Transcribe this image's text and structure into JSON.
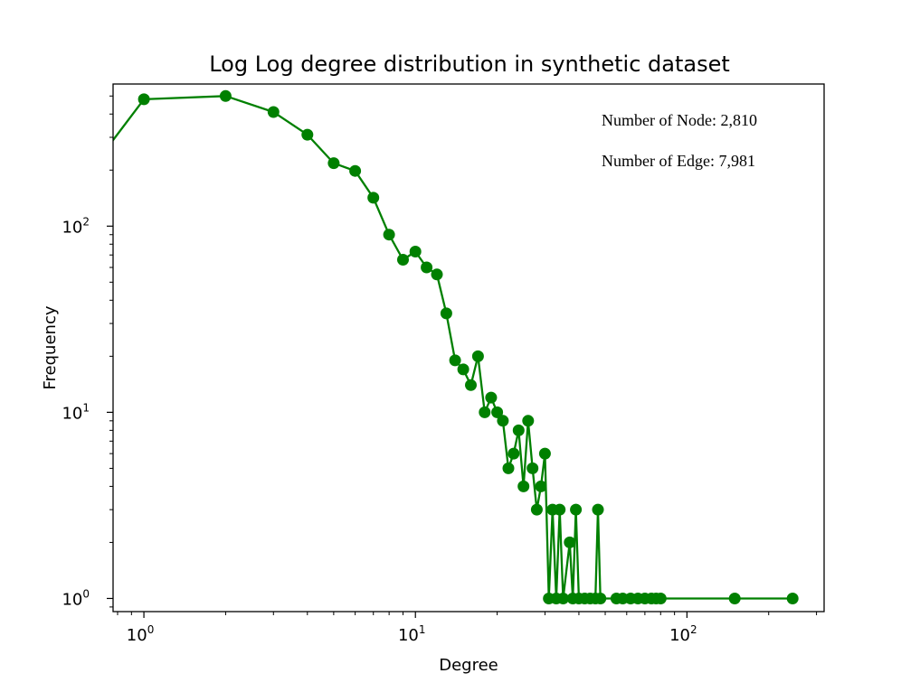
{
  "chart_data": {
    "type": "line",
    "title": "Log Log degree distribution in synthetic dataset",
    "xlabel": "Degree",
    "ylabel": "Frequency",
    "xscale": "log",
    "yscale": "log",
    "xlim": [
      0.77,
      320
    ],
    "ylim": [
      0.85,
      580
    ],
    "grid": false,
    "x_ticks": [
      {
        "base": "10",
        "exp": "0",
        "value": 1
      },
      {
        "base": "10",
        "exp": "1",
        "value": 10
      },
      {
        "base": "10",
        "exp": "2",
        "value": 100
      }
    ],
    "y_ticks": [
      {
        "base": "10",
        "exp": "0",
        "value": 1
      },
      {
        "base": "10",
        "exp": "1",
        "value": 10
      },
      {
        "base": "10",
        "exp": "2",
        "value": 100
      }
    ],
    "annotations": [
      "Number of Node: 2,810",
      "Number of Edge: 7,981"
    ],
    "series": [
      {
        "color": "#008000",
        "lead_in": {
          "x": 0,
          "y": 250
        },
        "points": [
          {
            "x": 1,
            "y": 480
          },
          {
            "x": 2,
            "y": 500
          },
          {
            "x": 3,
            "y": 410
          },
          {
            "x": 4,
            "y": 310
          },
          {
            "x": 5,
            "y": 218
          },
          {
            "x": 6,
            "y": 198
          },
          {
            "x": 7,
            "y": 142
          },
          {
            "x": 8,
            "y": 90
          },
          {
            "x": 9,
            "y": 66
          },
          {
            "x": 10,
            "y": 73
          },
          {
            "x": 11,
            "y": 60
          },
          {
            "x": 12,
            "y": 55
          },
          {
            "x": 13,
            "y": 34
          },
          {
            "x": 14,
            "y": 19
          },
          {
            "x": 15,
            "y": 17
          },
          {
            "x": 16,
            "y": 14
          },
          {
            "x": 17,
            "y": 20
          },
          {
            "x": 18,
            "y": 10
          },
          {
            "x": 19,
            "y": 12
          },
          {
            "x": 20,
            "y": 10
          },
          {
            "x": 21,
            "y": 9
          },
          {
            "x": 22,
            "y": 5
          },
          {
            "x": 23,
            "y": 6
          },
          {
            "x": 24,
            "y": 8
          },
          {
            "x": 25,
            "y": 4
          },
          {
            "x": 26,
            "y": 9
          },
          {
            "x": 27,
            "y": 5
          },
          {
            "x": 28,
            "y": 3
          },
          {
            "x": 29,
            "y": 4
          },
          {
            "x": 30,
            "y": 6
          },
          {
            "x": 31,
            "y": 1
          },
          {
            "x": 32,
            "y": 3
          },
          {
            "x": 33,
            "y": 1
          },
          {
            "x": 34,
            "y": 3
          },
          {
            "x": 35,
            "y": 1
          },
          {
            "x": 37,
            "y": 2
          },
          {
            "x": 38,
            "y": 1
          },
          {
            "x": 39,
            "y": 3
          },
          {
            "x": 40,
            "y": 1
          },
          {
            "x": 42,
            "y": 1
          },
          {
            "x": 44,
            "y": 1
          },
          {
            "x": 46,
            "y": 1
          },
          {
            "x": 47,
            "y": 3
          },
          {
            "x": 48,
            "y": 1
          },
          {
            "x": 55,
            "y": 1
          },
          {
            "x": 58,
            "y": 1
          },
          {
            "x": 62,
            "y": 1
          },
          {
            "x": 66,
            "y": 1
          },
          {
            "x": 70,
            "y": 1
          },
          {
            "x": 74,
            "y": 1
          },
          {
            "x": 77,
            "y": 1
          },
          {
            "x": 80,
            "y": 1
          },
          {
            "x": 150,
            "y": 1
          },
          {
            "x": 245,
            "y": 1
          }
        ]
      }
    ]
  }
}
